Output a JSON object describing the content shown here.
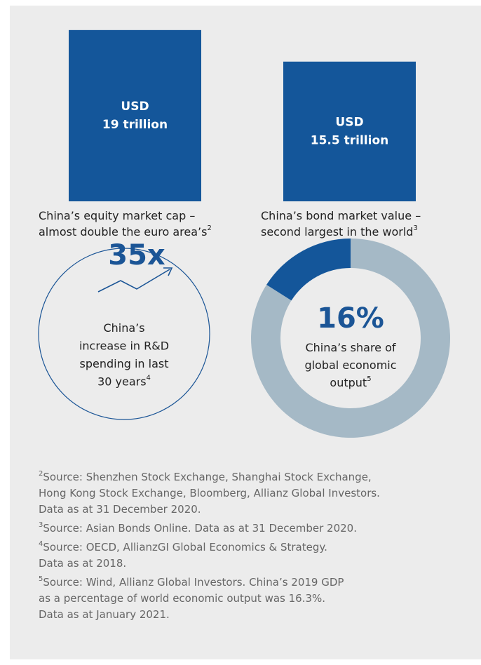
{
  "bars": [
    {
      "unit": "USD",
      "amount": "19 trillion",
      "value": 19,
      "caption": [
        "China’s equity market cap –",
        "almost double the euro area’s"
      ],
      "note": "2"
    },
    {
      "unit": "USD",
      "amount": "15.5 trillion",
      "value": 15.5,
      "caption": [
        "China’s bond market value –",
        "second largest in the world"
      ],
      "note": "3"
    }
  ],
  "circle": {
    "headline": "35x",
    "caption": [
      "China’s",
      "increase in R&D",
      "spending in last",
      "30 years"
    ],
    "note": "4"
  },
  "donut": {
    "headline": "16%",
    "value": 16,
    "caption": [
      "China’s share of",
      "global economic",
      "output"
    ],
    "note": "5"
  },
  "footnotes": [
    {
      "mark": "2",
      "lines": [
        "Source: Shenzhen Stock Exchange, Shanghai Stock Exchange,",
        "Hong Kong Stock Exchange, Bloomberg, Allianz Global Investors.",
        "Data as at 31 December 2020."
      ]
    },
    {
      "mark": "3",
      "lines": [
        "Source: Asian Bonds Online. Data as at 31 December 2020."
      ]
    },
    {
      "mark": "4",
      "lines": [
        "Source: OECD, AllianzGI Global Economics & Strategy.",
        "Data as at 2018."
      ]
    },
    {
      "mark": "5",
      "lines": [
        "Source: Wind, Allianz Global Investors. China’s 2019 GDP",
        "as a percentage of world economic output was 16.3%.",
        "Data as at January 2021."
      ]
    }
  ]
}
